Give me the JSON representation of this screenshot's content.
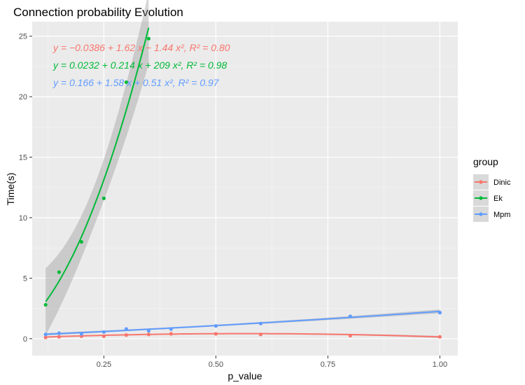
{
  "chart_data": {
    "type": "scatter",
    "title": "Connection probability Evolution",
    "xlabel": "p_value",
    "ylabel": "Time(s)",
    "xlim": [
      0.09,
      1.04
    ],
    "ylim": [
      -1.4,
      26.2
    ],
    "x_ticks": [
      0.25,
      0.5,
      0.75,
      1.0
    ],
    "x_tick_labels": [
      "0.25",
      "0.50",
      "0.75",
      "1.00"
    ],
    "y_ticks": [
      0,
      5,
      10,
      15,
      20,
      25
    ],
    "y_tick_labels": [
      "0",
      "5",
      "10",
      "15",
      "20",
      "25"
    ],
    "grid": true,
    "legend": {
      "title": "group",
      "position": "right"
    },
    "series": [
      {
        "name": "Dinic",
        "color": "#F8766D",
        "x": [
          0.12,
          0.15,
          0.2,
          0.25,
          0.3,
          0.35,
          0.4,
          0.5,
          0.6,
          0.8,
          1.0
        ],
        "y": [
          0.1,
          0.15,
          0.2,
          0.2,
          0.3,
          0.35,
          0.4,
          0.4,
          0.35,
          0.25,
          0.15
        ],
        "fit": [
          -0.0386,
          1.62,
          -1.44
        ],
        "equation": "y = −0.0386 + 1.62 x − 1.44 x², R² = 0.80"
      },
      {
        "name": "Ek",
        "color": "#00BA38",
        "x": [
          0.12,
          0.15,
          0.2,
          0.25,
          0.3,
          0.35
        ],
        "y": [
          2.8,
          5.5,
          8.0,
          11.6,
          21.2,
          24.8
        ],
        "fit": [
          0.0232,
          0.214,
          209
        ],
        "equation": "y = 0.0232 + 0.214 x + 209 x², R² = 0.98"
      },
      {
        "name": "Mpm",
        "color": "#619CFF",
        "x": [
          0.12,
          0.15,
          0.2,
          0.25,
          0.3,
          0.35,
          0.4,
          0.5,
          0.6,
          0.8,
          1.0
        ],
        "y": [
          0.35,
          0.45,
          0.4,
          0.55,
          0.8,
          0.65,
          0.8,
          1.05,
          1.25,
          1.85,
          2.15
        ],
        "fit": [
          0.166,
          1.58,
          0.51
        ],
        "equation": "y = 0.166 + 1.58 x + 0.51 x², R² = 0.97"
      }
    ]
  }
}
